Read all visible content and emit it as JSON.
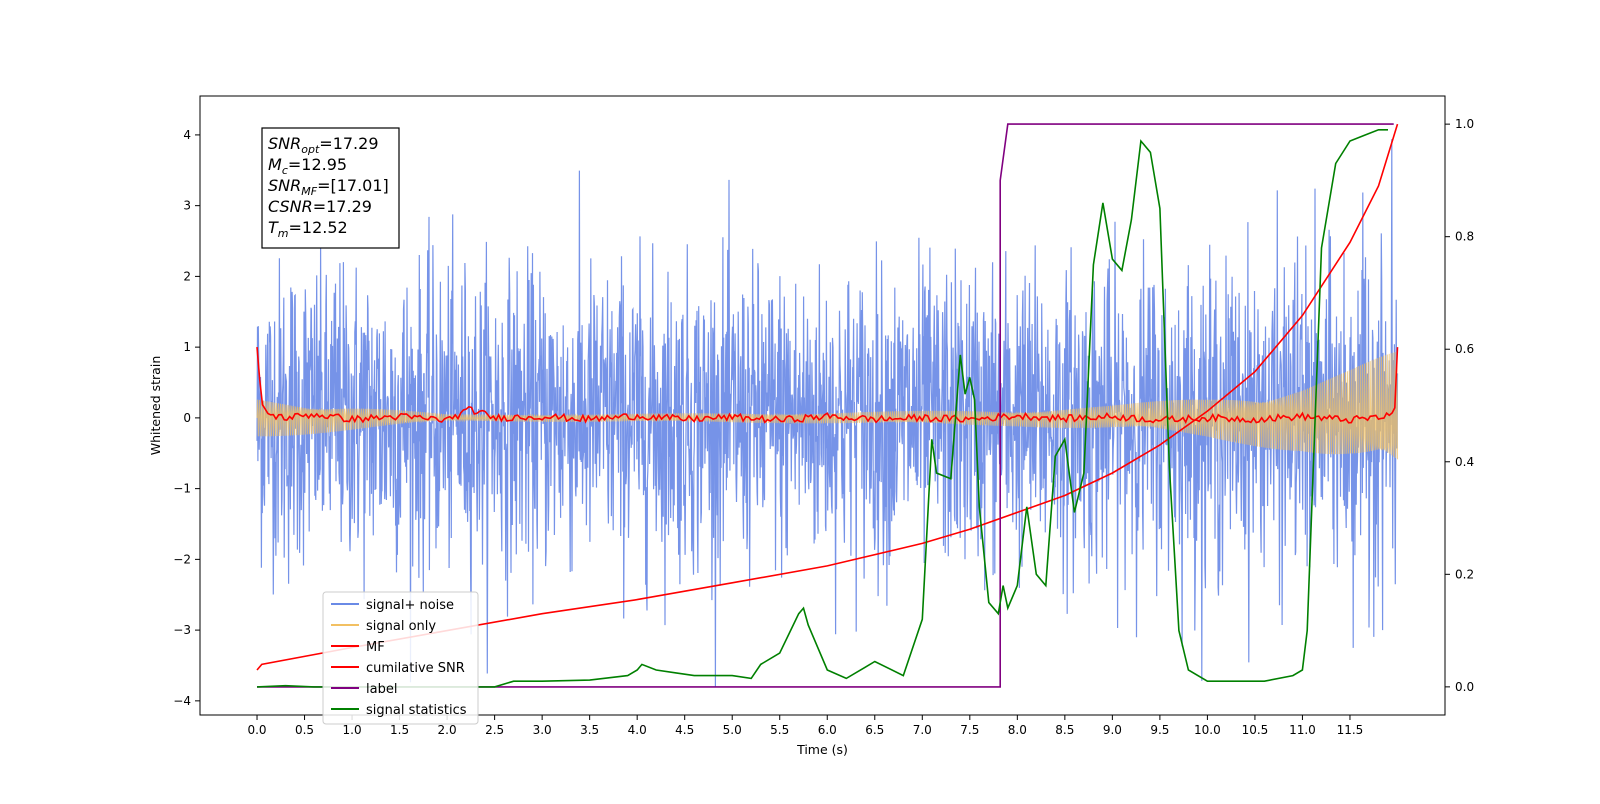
{
  "chart_data": {
    "type": "line",
    "xlabel": "Time (s)",
    "ylabel": "Whitened strain",
    "xlim": [
      -0.6,
      12.5
    ],
    "ylim": [
      -4.2,
      4.55
    ],
    "y2lim": [
      -0.05,
      1.05
    ],
    "x_ticks": [
      0.0,
      0.5,
      1.0,
      1.5,
      2.0,
      2.5,
      3.0,
      3.5,
      4.0,
      4.5,
      5.0,
      5.5,
      6.0,
      6.5,
      7.0,
      7.5,
      8.0,
      8.5,
      9.0,
      9.5,
      10.0,
      10.5,
      11.0,
      11.5
    ],
    "x_tick_labels": [
      "0.0",
      "0.5",
      "1.0",
      "1.5",
      "2.0",
      "2.5",
      "3.0",
      "3.5",
      "4.0",
      "4.5",
      "5.0",
      "5.5",
      "6.0",
      "6.5",
      "7.0",
      "7.5",
      "8.0",
      "8.5",
      "9.0",
      "9.5",
      "10.0",
      "10.5",
      "11.0",
      "11.5"
    ],
    "y_ticks": [
      -4,
      -3,
      -2,
      -1,
      0,
      1,
      2,
      3,
      4
    ],
    "y_tick_labels": [
      "−4",
      "−3",
      "−2",
      "−1",
      "0",
      "1",
      "2",
      "3",
      "4"
    ],
    "y2_ticks": [
      0.0,
      0.2,
      0.4,
      0.6,
      0.8,
      1.0
    ],
    "y2_tick_labels": [
      "0.0",
      "0.2",
      "0.4",
      "0.6",
      "0.8",
      "1.0"
    ],
    "grid": false,
    "legend_position": "lower-left",
    "legend": [
      {
        "label": "signal+ noise",
        "color": "#6a8ae6"
      },
      {
        "label": "signal only",
        "color": "#f2c062"
      },
      {
        "label": "MF",
        "color": "#ff0000"
      },
      {
        "label": "cumilative SNR",
        "color": "#ff0000"
      },
      {
        "label": "label",
        "color": "#800080"
      },
      {
        "label": "signal statistics",
        "color": "#008000"
      }
    ],
    "annotation_box": {
      "lines": [
        {
          "symbol": "SNR",
          "sub": "opt",
          "value": "=17.29"
        },
        {
          "symbol": "M",
          "sub": "c",
          "value": "=12.95"
        },
        {
          "symbol": "SNR",
          "sub": "MF",
          "value": "=[17.01]"
        },
        {
          "symbol": "CSNR",
          "sub": "",
          "value": "=17.29"
        },
        {
          "symbol": "T",
          "sub": "m",
          "value": "=12.52"
        }
      ]
    },
    "series": [
      {
        "name": "signal+ noise",
        "axis": "left",
        "color": "#6a8ae6",
        "description_values": {
          "x_range": [
            0.0,
            12.0
          ],
          "noise_amplitude_std": 1.0,
          "max_value": 4.2,
          "min_value": -3.8
        }
      },
      {
        "name": "signal only",
        "axis": "left",
        "color": "#f2c062",
        "envelope": {
          "x": [
            0.0,
            2.0,
            4.0,
            6.0,
            8.0,
            9.0,
            10.0,
            11.0,
            11.5,
            12.0
          ],
          "amplitude": [
            0.3,
            0.05,
            0.06,
            0.08,
            0.12,
            0.18,
            0.3,
            0.5,
            0.7,
            0.95
          ]
        }
      },
      {
        "name": "MF",
        "axis": "left",
        "color": "#ff0000",
        "x": [
          0.0,
          0.05,
          0.12,
          0.3,
          0.6,
          1.0,
          1.5,
          2.0,
          2.25,
          2.5,
          3.0,
          3.5,
          4.0,
          4.5,
          5.0,
          5.5,
          6.0,
          6.5,
          7.0,
          7.5,
          8.0,
          8.5,
          9.0,
          9.5,
          10.0,
          10.5,
          11.0,
          11.5,
          11.9,
          11.97,
          12.0
        ],
        "y": [
          1.0,
          0.2,
          0.05,
          0.0,
          0.05,
          -0.02,
          0.02,
          -0.03,
          0.12,
          0.0,
          0.02,
          -0.02,
          0.03,
          -0.02,
          0.01,
          -0.03,
          0.02,
          -0.02,
          0.0,
          -0.02,
          0.03,
          -0.01,
          0.02,
          -0.03,
          0.0,
          -0.02,
          0.02,
          -0.03,
          0.02,
          0.1,
          1.0
        ]
      },
      {
        "name": "cumilative SNR",
        "axis": "right",
        "color": "#ff0000",
        "x": [
          0.0,
          0.05,
          1.0,
          2.0,
          3.0,
          4.0,
          5.0,
          6.0,
          7.0,
          7.5,
          8.0,
          8.5,
          9.0,
          9.5,
          10.0,
          10.5,
          11.0,
          11.5,
          11.8,
          12.0
        ],
        "y": [
          0.03,
          0.04,
          0.07,
          0.1,
          0.13,
          0.155,
          0.185,
          0.215,
          0.255,
          0.28,
          0.31,
          0.34,
          0.38,
          0.43,
          0.49,
          0.56,
          0.66,
          0.79,
          0.89,
          1.0
        ]
      },
      {
        "name": "label",
        "axis": "right",
        "color": "#800080",
        "x": [
          0.0,
          7.82,
          7.82,
          7.9,
          11.96
        ],
        "y": [
          0.0,
          0.0,
          0.9,
          1.0,
          1.0
        ]
      },
      {
        "name": "signal statistics",
        "axis": "right",
        "color": "#008000",
        "x": [
          0.0,
          0.3,
          0.6,
          1.0,
          1.5,
          2.0,
          2.5,
          2.7,
          3.0,
          3.5,
          3.9,
          4.0,
          4.05,
          4.2,
          4.4,
          4.6,
          4.8,
          5.0,
          5.2,
          5.3,
          5.5,
          5.7,
          5.75,
          5.8,
          6.0,
          6.2,
          6.4,
          6.5,
          6.8,
          7.0,
          7.1,
          7.15,
          7.3,
          7.4,
          7.45,
          7.5,
          7.55,
          7.6,
          7.7,
          7.8,
          7.85,
          7.9,
          8.0,
          8.1,
          8.2,
          8.3,
          8.4,
          8.5,
          8.6,
          8.7,
          8.8,
          8.9,
          9.0,
          9.1,
          9.2,
          9.3,
          9.4,
          9.5,
          9.6,
          9.7,
          9.8,
          10.0,
          10.3,
          10.6,
          10.9,
          11.0,
          11.05,
          11.2,
          11.35,
          11.5,
          11.65,
          11.8,
          11.9
        ],
        "y": [
          0.0,
          0.002,
          0.0,
          0.0,
          0.0,
          0.0,
          0.0,
          0.01,
          0.01,
          0.012,
          0.02,
          0.03,
          0.04,
          0.03,
          0.025,
          0.02,
          0.02,
          0.02,
          0.015,
          0.04,
          0.06,
          0.13,
          0.14,
          0.11,
          0.03,
          0.015,
          0.035,
          0.045,
          0.02,
          0.12,
          0.44,
          0.38,
          0.37,
          0.59,
          0.52,
          0.55,
          0.51,
          0.32,
          0.15,
          0.13,
          0.18,
          0.14,
          0.18,
          0.32,
          0.2,
          0.18,
          0.41,
          0.44,
          0.31,
          0.38,
          0.75,
          0.86,
          0.76,
          0.74,
          0.83,
          0.97,
          0.95,
          0.85,
          0.39,
          0.1,
          0.03,
          0.01,
          0.01,
          0.01,
          0.02,
          0.03,
          0.1,
          0.78,
          0.93,
          0.97,
          0.98,
          0.99,
          0.99
        ]
      }
    ]
  }
}
